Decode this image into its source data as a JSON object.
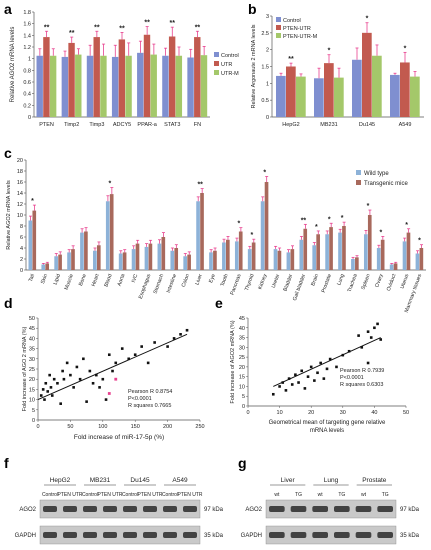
{
  "panels": {
    "a": "a",
    "b": "b",
    "c": "c",
    "d": "d",
    "e": "e",
    "f": "f",
    "g": "g"
  },
  "colors": {
    "blue": "#7f8fd0",
    "red": "#c25a4f",
    "green": "#a4c86a",
    "light_blue": "#8db2d8",
    "brown": "#a8695c",
    "err": "#e8418f"
  },
  "chart_data": [
    {
      "panel": "a",
      "type": "bar",
      "ylabel": "Relative AGO2 mRNA levels",
      "ylim": [
        0,
        1.8
      ],
      "yticks": [
        "0",
        "0.2",
        "0.4",
        "0.6",
        "0.8",
        "1",
        "1.2",
        "1.4",
        "1.6",
        "1.8"
      ],
      "categories": [
        "PTEN",
        "Timp2",
        "Timp3",
        "ADCY5",
        "PPAR-a",
        "STAT3",
        "FN"
      ],
      "series": [
        {
          "name": "Control",
          "values": [
            1.05,
            1.03,
            1.05,
            1.03,
            1.1,
            1.05,
            1.02
          ],
          "errors": [
            0.12,
            0.1,
            0.18,
            0.2,
            0.2,
            0.13,
            0.14
          ]
        },
        {
          "name": "UTR",
          "values": [
            1.37,
            1.27,
            1.37,
            1.33,
            1.41,
            1.38,
            1.37
          ],
          "errors": [
            0.1,
            0.1,
            0.1,
            0.12,
            0.14,
            0.16,
            0.1
          ]
        },
        {
          "name": "UTR-M",
          "values": [
            1.05,
            1.07,
            1.05,
            1.05,
            1.07,
            1.05,
            1.06
          ],
          "errors": [
            0.12,
            0.1,
            0.2,
            0.22,
            0.18,
            0.15,
            0.15
          ]
        }
      ],
      "significance": [
        "**",
        "**",
        "**",
        "**",
        "**",
        "**",
        "**"
      ],
      "legend": "right"
    },
    {
      "panel": "b",
      "type": "bar",
      "ylabel": "Relative Argonaute 2 mRNA levels",
      "ylim": [
        0,
        3
      ],
      "yticks": [
        "0",
        "0.5",
        "1",
        "1.5",
        "2",
        "2.5",
        "3"
      ],
      "categories": [
        "HepG2",
        "MB231",
        "Du145",
        "A549"
      ],
      "series": [
        {
          "name": "Control",
          "values": [
            1.22,
            1.15,
            1.7,
            1.25
          ],
          "errors": [
            0.08,
            0.3,
            0.35,
            0.05
          ]
        },
        {
          "name": "PTEN-UTR",
          "values": [
            1.5,
            1.6,
            2.5,
            1.62
          ],
          "errors": [
            0.1,
            0.25,
            0.3,
            0.3
          ]
        },
        {
          "name": "PTEN-UTR-M",
          "values": [
            1.2,
            1.17,
            1.82,
            1.2
          ],
          "errors": [
            0.08,
            0.28,
            0.32,
            0.15
          ]
        }
      ],
      "significance": [
        "**",
        "*",
        "*",
        "*"
      ],
      "legend": "top-left"
    },
    {
      "panel": "c",
      "type": "bar",
      "ylabel": "Relative AGO2 mRNA levels",
      "ylim": [
        0,
        20
      ],
      "yticks": [
        "0",
        "2",
        "4",
        "6",
        "8",
        "10",
        "12",
        "14",
        "16",
        "18",
        "20"
      ],
      "categories": [
        "Tail",
        "Skin",
        "Lipid",
        "Muscle",
        "Bone",
        "Heart",
        "Blood",
        "Aorta",
        "IVC",
        "Esophagus",
        "Stomach",
        "Intestine",
        "Colon",
        "Liver",
        "Eye",
        "Tooth",
        "Pancreas",
        "Thyroid",
        "Kidney",
        "Ureter",
        "Bladder",
        "Gall bladder",
        "Brain",
        "Prostate",
        "Lung",
        "Trachea",
        "Spleen",
        "Ovary",
        "Oviduct",
        "Uterus",
        "Mammary tissues"
      ],
      "series": [
        {
          "name": "Wild type",
          "values": [
            9.0,
            1.0,
            2.5,
            3.2,
            6.8,
            3.5,
            12.5,
            3.0,
            3.8,
            4.2,
            4.8,
            3.5,
            2.5,
            12.5,
            3.2,
            5.0,
            5.2,
            3.8,
            12.5,
            3.8,
            3.2,
            5.5,
            4.5,
            6.5,
            6.8,
            2.0,
            6.5,
            4.0,
            1.0,
            5.2,
            3.0
          ],
          "errors": [
            0.8,
            0.2,
            0.5,
            0.5,
            0.7,
            0.5,
            1.0,
            0.5,
            0.6,
            0.6,
            0.7,
            0.5,
            0.5,
            0.8,
            0.5,
            0.6,
            0.6,
            0.5,
            0.8,
            0.5,
            0.5,
            0.6,
            0.5,
            0.6,
            0.6,
            0.3,
            0.7,
            0.5,
            0.2,
            0.6,
            0.5
          ]
        },
        {
          "name": "Transgenic mice",
          "values": [
            10.8,
            1.2,
            2.8,
            3.8,
            7.0,
            4.5,
            13.8,
            3.2,
            4.8,
            4.8,
            6.0,
            4.0,
            2.8,
            14.0,
            3.5,
            5.5,
            7.0,
            5.0,
            16.0,
            3.5,
            3.8,
            7.5,
            6.5,
            7.8,
            8.0,
            2.3,
            10.0,
            5.5,
            1.2,
            6.8,
            4.0
          ],
          "errors": [
            1.0,
            0.2,
            0.5,
            0.6,
            0.7,
            0.6,
            1.2,
            0.5,
            0.6,
            0.6,
            0.8,
            0.6,
            0.5,
            0.8,
            0.5,
            0.6,
            0.7,
            0.6,
            1.0,
            0.5,
            0.6,
            0.8,
            0.6,
            0.7,
            0.7,
            0.3,
            0.9,
            0.6,
            0.2,
            0.7,
            0.6
          ]
        }
      ],
      "significance": [
        "*",
        "",
        "",
        "",
        "",
        "",
        "*",
        "",
        "",
        "",
        "",
        "",
        "",
        "**",
        "",
        "",
        "*",
        "*",
        "*",
        "",
        "",
        "**",
        "*",
        "*",
        "*",
        "",
        "*",
        "*",
        "",
        "*",
        "*"
      ],
      "legend": "top-right"
    },
    {
      "panel": "d",
      "type": "scatter",
      "xlabel": "Fold increase of miR-17-5p (%)",
      "ylabel": "Fold increase of AGO 2 mRNA (%)",
      "xlim": [
        0,
        250
      ],
      "ylim": [
        0,
        50
      ],
      "xticks": [
        "0",
        "50",
        "100",
        "150",
        "200",
        "250"
      ],
      "yticks": [
        "0",
        "5",
        "10",
        "15",
        "20",
        "25",
        "30",
        "35",
        "40",
        "45",
        "50"
      ],
      "points": [
        [
          5,
          12
        ],
        [
          8,
          15
        ],
        [
          10,
          10
        ],
        [
          12,
          18
        ],
        [
          15,
          14
        ],
        [
          18,
          22
        ],
        [
          20,
          16
        ],
        [
          22,
          12
        ],
        [
          25,
          20
        ],
        [
          30,
          18
        ],
        [
          35,
          8
        ],
        [
          38,
          24
        ],
        [
          40,
          20
        ],
        [
          45,
          28
        ],
        [
          50,
          22
        ],
        [
          55,
          16
        ],
        [
          60,
          26
        ],
        [
          65,
          20
        ],
        [
          70,
          30
        ],
        [
          75,
          9
        ],
        [
          80,
          24
        ],
        [
          85,
          18
        ],
        [
          90,
          22
        ],
        [
          95,
          16
        ],
        [
          100,
          20
        ],
        [
          105,
          10
        ],
        [
          110,
          32
        ],
        [
          115,
          24
        ],
        [
          120,
          28
        ],
        [
          130,
          35
        ],
        [
          140,
          30
        ],
        [
          150,
          32
        ],
        [
          160,
          36
        ],
        [
          170,
          28
        ],
        [
          180,
          38
        ],
        [
          200,
          36
        ],
        [
          210,
          40
        ],
        [
          220,
          42
        ],
        [
          230,
          44
        ]
      ],
      "highlight_points": [
        [
          110,
          13
        ],
        [
          120,
          20
        ]
      ],
      "fit_line": [
        [
          0,
          10
        ],
        [
          230,
          42
        ]
      ],
      "stats": [
        "Pearson R 0.8754",
        "P<0.0001",
        "R squares  0.7665"
      ]
    },
    {
      "panel": "e",
      "type": "scatter",
      "xlabel": "Geometrical mean of targeting gene relative mRNA levels",
      "ylabel": "Fold increase of AGO2 mRNA (%)",
      "xlim": [
        0,
        50
      ],
      "ylim": [
        0,
        45
      ],
      "xticks": [
        "0",
        "10",
        "20",
        "30",
        "40",
        "50"
      ],
      "yticks": [
        "0",
        "5",
        "10",
        "15",
        "20",
        "25",
        "30",
        "35",
        "40",
        "45"
      ],
      "points": [
        [
          8,
          6
        ],
        [
          10,
          10
        ],
        [
          11,
          12
        ],
        [
          12,
          8
        ],
        [
          13,
          14
        ],
        [
          14,
          11
        ],
        [
          15,
          16
        ],
        [
          16,
          12
        ],
        [
          17,
          18
        ],
        [
          18,
          9
        ],
        [
          19,
          15
        ],
        [
          20,
          20
        ],
        [
          21,
          13
        ],
        [
          22,
          17
        ],
        [
          23,
          22
        ],
        [
          24,
          14
        ],
        [
          25,
          19
        ],
        [
          26,
          24
        ],
        [
          28,
          20
        ],
        [
          30,
          26
        ],
        [
          32,
          28
        ],
        [
          35,
          36
        ],
        [
          36,
          30
        ],
        [
          38,
          38
        ],
        [
          39,
          35
        ],
        [
          40,
          40
        ],
        [
          41,
          42
        ],
        [
          42,
          34
        ],
        [
          38,
          22
        ]
      ],
      "fit_line": [
        [
          8,
          10
        ],
        [
          42,
          35
        ]
      ],
      "stats": [
        "Pearson R 0.7939",
        "P<0.0001",
        "R squares  0.6303"
      ]
    }
  ],
  "blot_f": {
    "groups": [
      "HepG2",
      "MB231",
      "Du145",
      "A549"
    ],
    "lanes": [
      "Control",
      "PTEN UTR",
      "Control",
      "PTEN UTR",
      "Control",
      "PTEN UTR",
      "Control",
      "PTEN UTR"
    ],
    "rows": [
      "AGO2",
      "GAPDH"
    ],
    "sizes": [
      "97 kDa",
      "35 kDa"
    ]
  },
  "blot_g": {
    "groups": [
      "Liver",
      "Lung",
      "Prostate"
    ],
    "lanes": [
      "wt",
      "TG",
      "wt",
      "TG",
      "wt",
      "TG"
    ],
    "rows": [
      "AGO2",
      "GAPDH"
    ],
    "sizes": [
      "97 kDa",
      "35 kDa"
    ]
  }
}
